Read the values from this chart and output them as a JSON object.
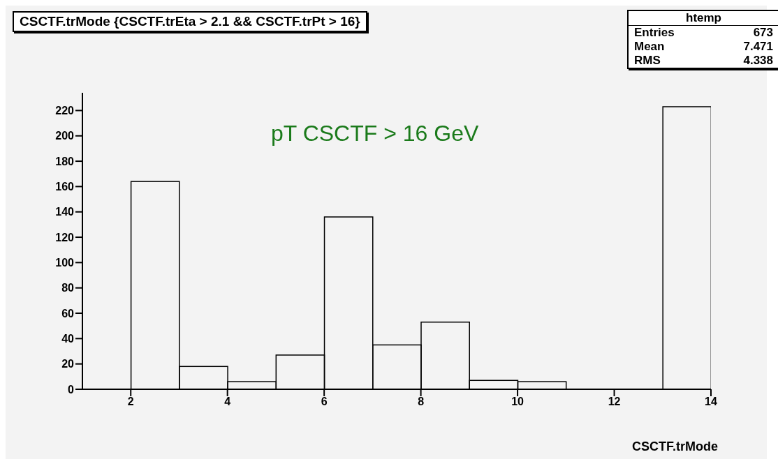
{
  "chart_data": {
    "type": "histogram",
    "title": "CSCTF.trMode {CSCTF.trEta > 2.1 && CSCTF.trPt > 16}",
    "xlabel": "CSCTF.trMode",
    "bins": [
      2,
      3,
      4,
      5,
      6,
      7,
      8,
      9,
      10,
      11,
      12,
      13,
      14
    ],
    "values": [
      164,
      18,
      6,
      27,
      136,
      35,
      53,
      7,
      6,
      0,
      0,
      223
    ],
    "color": "#000000",
    "xlim": [
      1,
      14
    ],
    "xticks": [
      2,
      4,
      6,
      8,
      10,
      12,
      14
    ],
    "ylim": [
      0,
      234
    ],
    "yticks": [
      0,
      20,
      40,
      60,
      80,
      100,
      120,
      140,
      160,
      180,
      200,
      220
    ],
    "annotations": [
      "htemp",
      "Entries 673",
      "Mean 7.471",
      "RMS 4.338",
      "pT CSCTF > 16 GeV"
    ]
  }
}
